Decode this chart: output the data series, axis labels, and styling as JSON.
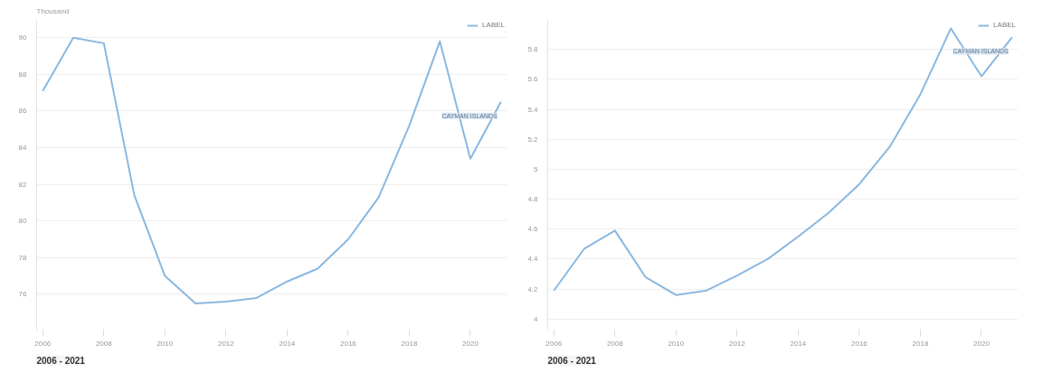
{
  "chart_data": [
    {
      "type": "line",
      "ylabel": "Thousand",
      "x": [
        2006,
        2007,
        2008,
        2009,
        2010,
        2011,
        2012,
        2013,
        2014,
        2015,
        2016,
        2017,
        2018,
        2019,
        2020,
        2021
      ],
      "series": [
        {
          "name": "LABEL",
          "color": "#8ab8e0",
          "values": [
            87.1,
            90.0,
            89.7,
            81.4,
            77.0,
            75.5,
            75.6,
            75.8,
            76.7,
            77.4,
            79.0,
            81.3,
            85.2,
            89.8,
            83.4,
            86.5
          ]
        }
      ],
      "xlim": [
        2005.8,
        2021.2
      ],
      "xticks": [
        2006,
        2008,
        2010,
        2012,
        2014,
        2016,
        2018,
        2020
      ],
      "ylim": [
        74,
        91
      ],
      "yticks": [
        76,
        78,
        80,
        82,
        84,
        86,
        88,
        90
      ],
      "annotations": [
        {
          "text": "CAYMAN ISLANDS",
          "x": 2021,
          "y": 86.5
        },
        "2006 - 2021"
      ],
      "grid": "y",
      "legend": "top right",
      "marker": "none",
      "line_style": "solid"
    },
    {
      "type": "line",
      "x": [
        2006,
        2007,
        2008,
        2009,
        2010,
        2011,
        2012,
        2013,
        2014,
        2015,
        2016,
        2017,
        2018,
        2019,
        2020,
        2021
      ],
      "series": [
        {
          "name": "LABEL",
          "color": "#8ab8e0",
          "values": [
            4.19,
            4.47,
            4.59,
            4.28,
            4.16,
            4.19,
            4.29,
            4.4,
            4.55,
            4.71,
            4.9,
            5.15,
            5.5,
            5.94,
            5.62,
            5.88
          ]
        }
      ],
      "xlim": [
        2005.8,
        2021.2
      ],
      "xticks": [
        2006,
        2008,
        2010,
        2012,
        2014,
        2016,
        2018,
        2020
      ],
      "ylim": [
        3.92,
        6.0
      ],
      "yticks": [
        4.0,
        4.2,
        4.4,
        4.6,
        4.8,
        5.0,
        5.2,
        5.4,
        5.6,
        5.8
      ],
      "annotations": [
        {
          "text": "CAYMAN ISLANDS",
          "x": 2021,
          "y": 5.88
        },
        "2006 - 2021"
      ],
      "grid": "y",
      "legend": "top right",
      "marker": "none",
      "line_style": "solid"
    }
  ]
}
